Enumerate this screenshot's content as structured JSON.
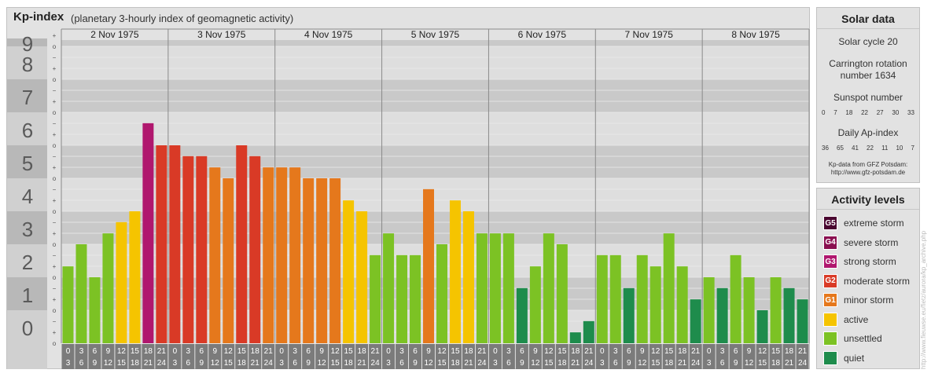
{
  "header": {
    "title": "Kp-index",
    "subtitle": "(planetary 3-hourly index of geomagnetic activity)"
  },
  "chart_data": {
    "type": "bar",
    "title": "Kp-index",
    "subtitle": "(planetary 3-hourly index of geomagnetic activity)",
    "days": [
      "2 Nov 1975",
      "3 Nov 1975",
      "4 Nov 1975",
      "5 Nov 1975",
      "6 Nov 1975",
      "7 Nov 1975",
      "8 Nov 1975"
    ],
    "ylim": [
      0,
      9
    ],
    "y_tick_labels": [
      "0",
      "1",
      "2",
      "3",
      "4",
      "5",
      "6",
      "7",
      "8",
      "9"
    ],
    "sub_tick_labels": [
      "o",
      "+",
      "−"
    ],
    "interval_start_labels": [
      "0",
      "3",
      "6",
      "9",
      "12",
      "15",
      "18",
      "21"
    ],
    "interval_end_labels": [
      "3",
      "6",
      "9",
      "12",
      "15",
      "18",
      "21",
      "24"
    ],
    "values": [
      2.33,
      3.0,
      2.0,
      3.33,
      3.67,
      4.0,
      6.67,
      6.0,
      6.0,
      5.67,
      5.67,
      5.33,
      5.0,
      6.0,
      5.67,
      5.33,
      5.33,
      5.33,
      5.0,
      5.0,
      5.0,
      4.33,
      4.0,
      2.67,
      3.33,
      2.67,
      2.67,
      4.67,
      3.0,
      4.33,
      4.0,
      3.33,
      3.33,
      3.33,
      1.67,
      2.33,
      3.33,
      3.0,
      0.33,
      0.67,
      2.67,
      2.67,
      1.67,
      2.67,
      2.33,
      3.33,
      2.33,
      1.33,
      2.0,
      1.67,
      2.67,
      2.0,
      1.0,
      2.0,
      1.67,
      1.33
    ],
    "colors": {
      "quiet": "#1e8c4c",
      "unsettled": "#7cc224",
      "active": "#f5c400",
      "minor": "#e5781c",
      "moderate": "#d93a26",
      "strong": "#b0176e",
      "severe": "#8a0f50",
      "extreme": "#4a0630"
    }
  },
  "solar": {
    "title": "Solar data",
    "cycle": "Solar cycle 20",
    "carrington_line1": "Carrington rotation",
    "carrington_line2": "number 1634",
    "sunspot_label": "Sunspot number",
    "sunspots": [
      "0",
      "7",
      "18",
      "22",
      "27",
      "30",
      "33"
    ],
    "ap_label": "Daily Ap-index",
    "ap": [
      "36",
      "65",
      "41",
      "22",
      "11",
      "10",
      "7"
    ],
    "source_line1": "Kp-data from GFZ Potsdam:",
    "source_line2": "http://www.gfz-potsdam.de"
  },
  "activity": {
    "title": "Activity levels",
    "items": [
      {
        "badge": "G5",
        "label": "extreme storm",
        "color": "#4a0630"
      },
      {
        "badge": "G4",
        "label": "severe storm",
        "color": "#8a0f50"
      },
      {
        "badge": "G3",
        "label": "strong storm",
        "color": "#b0176e"
      },
      {
        "badge": "G2",
        "label": "moderate storm",
        "color": "#d93a26"
      },
      {
        "badge": "G1",
        "label": "minor storm",
        "color": "#e5781c"
      },
      {
        "badge": "",
        "label": "active",
        "color": "#f5c400"
      },
      {
        "badge": "",
        "label": "unsettled",
        "color": "#7cc224"
      },
      {
        "badge": "",
        "label": "quiet",
        "color": "#1e8c4c"
      }
    ]
  },
  "watermark": "http://www.fieuwse.eu/fietz/aurora/kp_archive.php"
}
